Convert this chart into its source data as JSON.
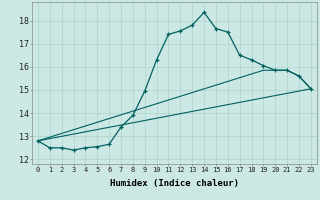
{
  "xlabel": "Humidex (Indice chaleur)",
  "bg_color": "#cce8e4",
  "grid_color": "#aad4cc",
  "line_color": "#006060",
  "xlim": [
    -0.5,
    23.5
  ],
  "ylim": [
    11.8,
    18.8
  ],
  "xticks": [
    0,
    1,
    2,
    3,
    4,
    5,
    6,
    7,
    8,
    9,
    10,
    11,
    12,
    13,
    14,
    15,
    16,
    17,
    18,
    19,
    20,
    21,
    22,
    23
  ],
  "yticks": [
    12,
    13,
    14,
    15,
    16,
    17,
    18
  ],
  "curve1_x": [
    0,
    1,
    2,
    3,
    4,
    5,
    6,
    7,
    8,
    9,
    10,
    11,
    12,
    13,
    14,
    15,
    16,
    17,
    18,
    19,
    20,
    21,
    22,
    23
  ],
  "curve1_y": [
    12.8,
    12.5,
    12.5,
    12.4,
    12.5,
    12.55,
    12.65,
    13.4,
    13.9,
    14.95,
    16.3,
    17.4,
    17.55,
    17.8,
    18.35,
    17.65,
    17.5,
    16.5,
    16.3,
    16.05,
    15.85,
    15.85,
    15.6,
    15.05
  ],
  "curve2_x": [
    0,
    23
  ],
  "curve2_y": [
    12.8,
    15.05
  ],
  "curve3_x": [
    0,
    19,
    20,
    21,
    22,
    23
  ],
  "curve3_y": [
    12.8,
    15.85,
    15.85,
    15.85,
    15.6,
    15.05
  ]
}
